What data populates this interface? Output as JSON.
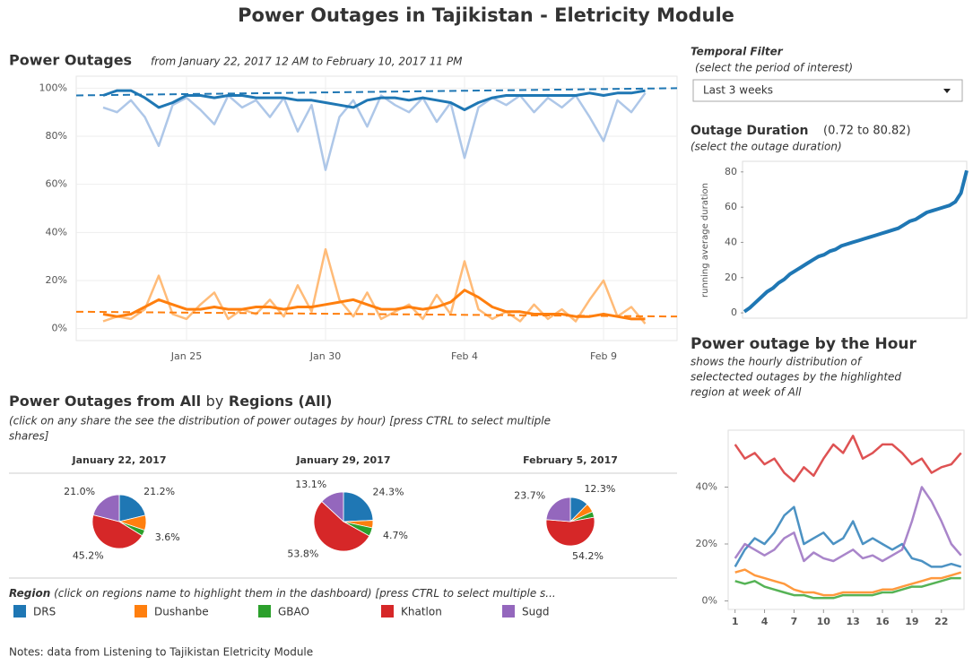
{
  "title": "Power Outages in Tajikistan - Eletricity Module",
  "filter": {
    "title": "Temporal Filter",
    "subtitle": "(select the period of interest)",
    "selected": "Last 3 weeks"
  },
  "notes": "Notes: data from Listening to Tajikistan Eletricity Module",
  "chart_data": [
    {
      "type": "line",
      "title": "Power Outages",
      "subtitle": "from January 22, 2017 12 AM to February 10, 2017 11 PM",
      "categories": [
        null,
        null,
        null,
        null,
        null,
        null,
        "Jan 25",
        null,
        null,
        null,
        null,
        null,
        null,
        null,
        null,
        null,
        "Jan 30",
        null,
        null,
        null,
        null,
        null,
        null,
        null,
        null,
        null,
        "Feb 4",
        null,
        null,
        null,
        null,
        null,
        null,
        null,
        null,
        null,
        "Feb 9",
        null,
        null,
        null
      ],
      "ylim": [
        -5,
        105
      ],
      "yticks": [
        {
          "value": 0,
          "label": "0%"
        },
        {
          "value": 20,
          "label": "20%"
        },
        {
          "value": 40,
          "label": "40%"
        },
        {
          "value": 60,
          "label": "60%"
        },
        {
          "value": 80,
          "label": "80%"
        },
        {
          "value": 100,
          "label": "100%"
        }
      ],
      "grid": true,
      "series": [
        {
          "color": "#aec7e8",
          "values": [
            92,
            90,
            95,
            88,
            76,
            93,
            96,
            91,
            85,
            97,
            92,
            95,
            88,
            96,
            82,
            93,
            66,
            88,
            95,
            84,
            97,
            93,
            90,
            96,
            86,
            94,
            71,
            92,
            96,
            93,
            97,
            90,
            96,
            92,
            97,
            88,
            78,
            95,
            90,
            98
          ]
        },
        {
          "color": "#1f77b4",
          "values": [
            97,
            99,
            99,
            96,
            92,
            94,
            97,
            97,
            96,
            97,
            97,
            96,
            96,
            96,
            95,
            95,
            94,
            93,
            92,
            95,
            96,
            96,
            95,
            96,
            95,
            94,
            91,
            94,
            96,
            97,
            97,
            97,
            97,
            97,
            97,
            98,
            97,
            98,
            98,
            99
          ],
          "trend": [
            97,
            100
          ]
        },
        {
          "color": "#ffbb78",
          "values": [
            3,
            5,
            4,
            8,
            22,
            6,
            4,
            10,
            15,
            4,
            8,
            6,
            12,
            5,
            18,
            7,
            33,
            12,
            5,
            15,
            4,
            7,
            10,
            4,
            14,
            6,
            28,
            8,
            4,
            7,
            3,
            10,
            4,
            8,
            3,
            12,
            20,
            5,
            9,
            2
          ]
        },
        {
          "color": "#ff7f0e",
          "values": [
            6,
            5,
            6,
            9,
            12,
            10,
            8,
            8,
            9,
            8,
            8,
            9,
            9,
            8,
            9,
            9,
            10,
            11,
            12,
            10,
            8,
            8,
            9,
            8,
            9,
            11,
            16,
            13,
            9,
            7,
            7,
            6,
            6,
            6,
            5,
            5,
            6,
            5,
            4,
            4
          ],
          "trend": [
            7,
            5
          ]
        }
      ]
    },
    {
      "type": "line",
      "title": "Outage Duration",
      "range": "(0.72 to 80.82)",
      "subtitle": "(select the outage duration)",
      "ylabel": "running average duration",
      "ylim": [
        -3,
        86
      ],
      "yticks": [
        0,
        20,
        40,
        60,
        80
      ],
      "color": "#1f77b4",
      "values": [
        0.72,
        3,
        6,
        9,
        12,
        14,
        17,
        19,
        22,
        24,
        26,
        28,
        30,
        32,
        33,
        35,
        36,
        38,
        39,
        40,
        41,
        42,
        43,
        44,
        45,
        46,
        47,
        48,
        50,
        52,
        53,
        55,
        57,
        58,
        59,
        60,
        61,
        63,
        68,
        80.82
      ]
    },
    {
      "type": "line",
      "title": "Power outage by the Hour",
      "subtitle": [
        "shows the hourly distribution of",
        "selectected outages by the highlighted",
        "region at week of  All"
      ],
      "x": [
        1,
        2,
        3,
        4,
        5,
        6,
        7,
        8,
        9,
        10,
        11,
        12,
        13,
        14,
        15,
        16,
        17,
        18,
        19,
        20,
        21,
        22,
        23,
        24
      ],
      "xlim": [
        0.3,
        24.3
      ],
      "xticks": [
        1,
        4,
        7,
        10,
        13,
        16,
        19,
        22
      ],
      "ylim": [
        -3,
        60
      ],
      "yticks": [
        {
          "value": 0,
          "label": "0%"
        },
        {
          "value": 20,
          "label": "20%"
        },
        {
          "value": 40,
          "label": "40%"
        }
      ],
      "series": [
        {
          "color": "#d62728",
          "values": [
            55,
            50,
            52,
            48,
            50,
            45,
            42,
            47,
            44,
            50,
            55,
            52,
            58,
            50,
            52,
            55,
            55,
            52,
            48,
            50,
            45,
            47,
            48,
            52
          ]
        },
        {
          "color": "#1f77b4",
          "values": [
            12,
            18,
            22,
            20,
            24,
            30,
            33,
            20,
            22,
            24,
            20,
            22,
            28,
            20,
            22,
            20,
            18,
            20,
            15,
            14,
            12,
            12,
            13,
            12
          ]
        },
        {
          "color": "#9467bd",
          "values": [
            15,
            20,
            18,
            16,
            18,
            22,
            24,
            14,
            17,
            15,
            14,
            16,
            18,
            15,
            16,
            14,
            16,
            18,
            28,
            40,
            35,
            28,
            20,
            16
          ]
        },
        {
          "color": "#ff7f0e",
          "values": [
            10,
            11,
            9,
            8,
            7,
            6,
            4,
            3,
            3,
            2,
            2,
            3,
            3,
            3,
            3,
            4,
            4,
            5,
            6,
            7,
            8,
            8,
            9,
            10
          ]
        },
        {
          "color": "#2ca02c",
          "values": [
            7,
            6,
            7,
            5,
            4,
            3,
            2,
            2,
            1,
            1,
            1,
            2,
            2,
            2,
            2,
            3,
            3,
            4,
            5,
            5,
            6,
            7,
            8,
            8
          ]
        }
      ]
    },
    {
      "type": "pie",
      "title": "Power Outages from All",
      "title_by": "by",
      "title_regions": "Regions (All)",
      "subtitle": [
        "(click on any share the see the distribution of power outages by hour) [press CTRL to select multiple",
        "shares]"
      ],
      "categories": [
        "DRS",
        "Dushanbe",
        "GBAO",
        "Khatlon",
        "Sugd"
      ],
      "colors": [
        "#1f77b4",
        "#ff7f0e",
        "#2ca02c",
        "#d62728",
        "#9467bd"
      ],
      "legend_title": "Region",
      "legend_note": "(click on regions name to highlight them in the dashboard) [press CTRL to select multiple s...",
      "pies": [
        {
          "title": "January 22, 2017",
          "values": [
            21.2,
            9.0,
            3.6,
            45.2,
            21.0
          ],
          "value_labels": [
            "21.2%",
            null,
            "3.6%",
            "45.2%",
            "21.0%"
          ]
        },
        {
          "title": "January 29, 2017",
          "values": [
            24.3,
            4.1,
            4.7,
            53.8,
            13.1
          ],
          "value_labels": [
            "24.3%",
            null,
            "4.7%",
            "53.8%",
            "13.1%"
          ]
        },
        {
          "title": "February 5, 2017",
          "values": [
            12.3,
            6.0,
            3.8,
            54.2,
            23.7
          ],
          "value_labels": [
            "12.3%",
            null,
            null,
            "54.2%",
            "23.7%"
          ]
        }
      ]
    }
  ]
}
